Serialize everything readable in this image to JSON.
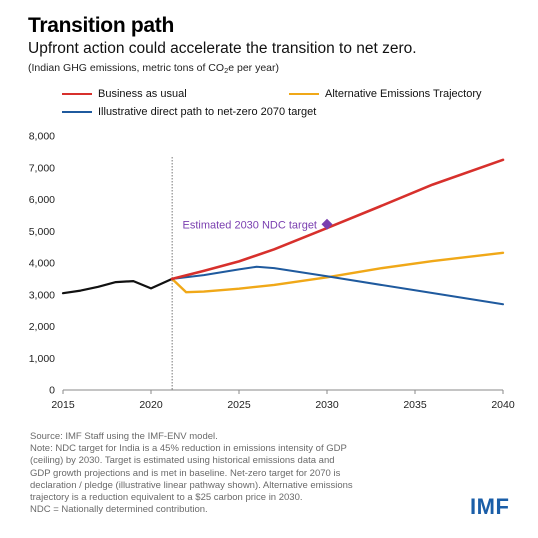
{
  "title": "Transition path",
  "subtitle": "Upfront action could accelerate the transition to net zero.",
  "units_prefix": "(Indian GHG emissions, metric tons of CO",
  "units_sub": "2",
  "units_suffix": "e per year)",
  "logo": "IMF",
  "notes": [
    "Source:  IMF Staff using the IMF-ENV model.",
    "Note: NDC target for India is a 45% reduction in emissions intensity of GDP",
    "(ceiling) by 2030. Target is estimated using historical emissions data and",
    "GDP growth projections and is met in baseline. Net-zero target for 2070 is",
    "declaration / pledge (illustrative linear pathway shown). Alternative emissions",
    "trajectory is a reduction equivalent to a $25 carbon price in 2030.",
    "NDC = Nationally determined contribution."
  ],
  "colors": {
    "bau": "#d7302c",
    "alt": "#f0a818",
    "direct": "#1f5a9e",
    "history": "#111111",
    "ndc": "#7a3fb0"
  },
  "chart_data": {
    "type": "line",
    "xlim": [
      2015,
      2040
    ],
    "ylim": [
      0,
      8000
    ],
    "x_ticks": [
      "2015",
      "2020",
      "2025",
      "2030",
      "2035",
      "2040"
    ],
    "y_ticks": [
      "0",
      "1,000",
      "2,000",
      "3,000",
      "4,000",
      "5,000",
      "6,000",
      "7,000",
      "8,000"
    ],
    "legend_position": "top-left",
    "grid": false,
    "projection_start": 2021.2,
    "series": [
      {
        "key": "history",
        "name": "",
        "x": [
          2015,
          2016,
          2017,
          2018,
          2019,
          2020,
          2021.2
        ],
        "y": [
          3050,
          3130,
          3250,
          3400,
          3430,
          3200,
          3500
        ]
      },
      {
        "key": "bau",
        "name": "Business as usual",
        "x": [
          2021.2,
          2023,
          2025,
          2027,
          2030,
          2033,
          2036,
          2040
        ],
        "y": [
          3500,
          3750,
          4050,
          4430,
          5100,
          5780,
          6470,
          7250
        ]
      },
      {
        "key": "alt",
        "name": "Alternative Emissions Trajectory",
        "x": [
          2021.2,
          2022,
          2023,
          2025,
          2027,
          2030,
          2033,
          2036,
          2040
        ],
        "y": [
          3500,
          3080,
          3100,
          3190,
          3310,
          3550,
          3830,
          4060,
          4320
        ]
      },
      {
        "key": "direct",
        "name": "Illustrative direct path to net-zero 2070 target",
        "x": [
          2021.2,
          2023,
          2025,
          2026,
          2027,
          2030,
          2035,
          2040
        ],
        "y": [
          3500,
          3620,
          3800,
          3880,
          3840,
          3580,
          3140,
          2700
        ]
      }
    ],
    "points": [
      {
        "label": "Estimated 2030 NDC target",
        "x": 2030,
        "y": 5220
      }
    ]
  }
}
